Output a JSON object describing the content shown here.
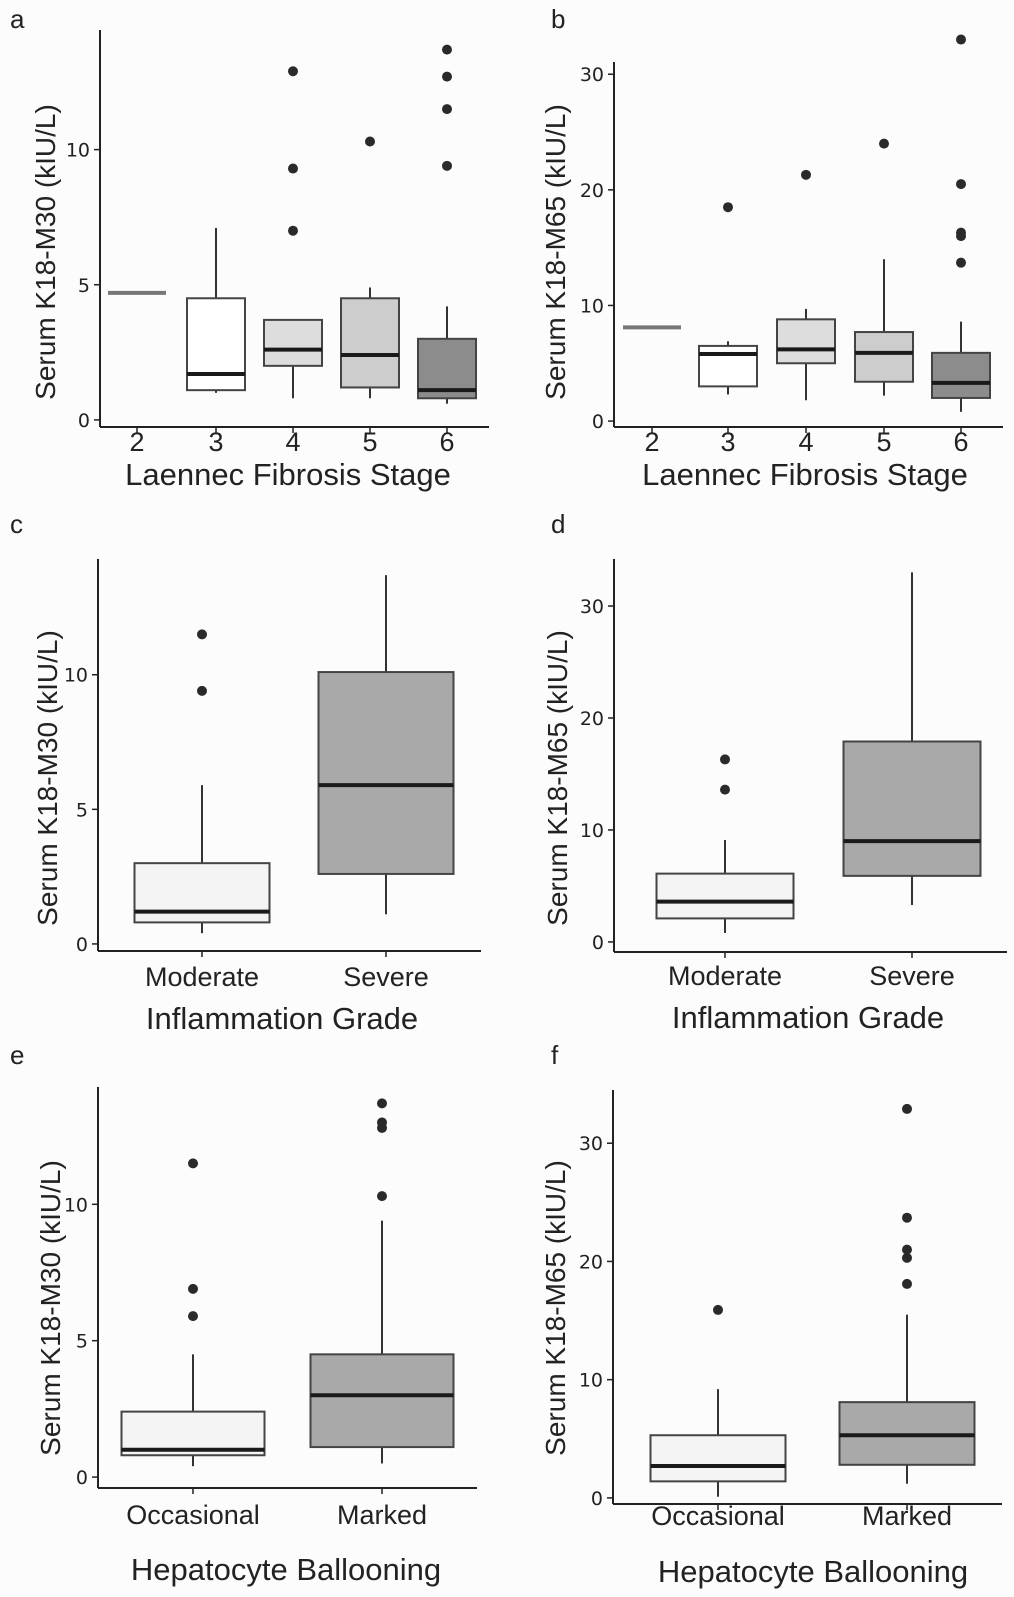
{
  "chart_data": [
    {
      "panel": "a",
      "type": "box",
      "xlabel": "Laennec Fibrosis Stage",
      "ylabel": "Serum K18-M30 (kIU/L)",
      "yticks": [
        0,
        5,
        10
      ],
      "ylim": [
        -0.3,
        14.5
      ],
      "categories": [
        "2",
        "3",
        "4",
        "5",
        "6"
      ],
      "boxes": [
        {
          "min": 4.7,
          "q1": 4.7,
          "median": 4.7,
          "q3": 4.7,
          "max": 4.7,
          "outliers": [],
          "color": "#888888"
        },
        {
          "min": 1.0,
          "q1": 1.1,
          "median": 1.7,
          "q3": 4.5,
          "max": 7.1,
          "outliers": [],
          "color": "#ffffff"
        },
        {
          "min": 0.8,
          "q1": 2.0,
          "median": 2.6,
          "q3": 3.7,
          "max": 3.7,
          "outliers": [
            7.0,
            9.3,
            12.9
          ],
          "color": "#dddddd"
        },
        {
          "min": 0.8,
          "q1": 1.2,
          "median": 2.4,
          "q3": 4.5,
          "max": 4.9,
          "outliers": [
            10.3
          ],
          "color": "#cdcdcd"
        },
        {
          "min": 0.6,
          "q1": 0.8,
          "median": 1.1,
          "q3": 3.0,
          "max": 4.2,
          "outliers": [
            9.4,
            11.5,
            12.7,
            13.7
          ],
          "color": "#8c8c8c"
        }
      ]
    },
    {
      "panel": "b",
      "type": "box",
      "xlabel": "Laennec Fibrosis Stage",
      "ylabel": "Serum K18-M65 (kIU/L)",
      "yticks": [
        0,
        10,
        20,
        30
      ],
      "ylim": [
        -0.6,
        34.0
      ],
      "categories": [
        "2",
        "3",
        "4",
        "5",
        "6"
      ],
      "boxes": [
        {
          "min": 8.1,
          "q1": 8.1,
          "median": 8.1,
          "q3": 8.1,
          "max": 8.1,
          "outliers": [],
          "color": "#888888"
        },
        {
          "min": 2.3,
          "q1": 3.0,
          "median": 5.8,
          "q3": 6.5,
          "max": 6.9,
          "outliers": [
            18.5
          ],
          "color": "#ffffff"
        },
        {
          "min": 1.8,
          "q1": 5.0,
          "median": 6.2,
          "q3": 8.8,
          "max": 9.7,
          "outliers": [
            21.3
          ],
          "color": "#dddddd"
        },
        {
          "min": 2.2,
          "q1": 3.4,
          "median": 5.9,
          "q3": 7.7,
          "max": 14.0,
          "outliers": [
            24.0
          ],
          "color": "#cdcdcd"
        },
        {
          "min": 0.8,
          "q1": 2.0,
          "median": 3.3,
          "q3": 5.9,
          "max": 8.6,
          "outliers": [
            13.7,
            16.0,
            16.3,
            20.5,
            33.0
          ],
          "color": "#8c8c8c"
        }
      ]
    },
    {
      "panel": "c",
      "type": "box",
      "xlabel": "Inflammation Grade",
      "ylabel": "Serum K18-M30 (kIU/L)",
      "yticks": [
        0,
        5,
        10
      ],
      "ylim": [
        -0.3,
        14.3
      ],
      "categories": [
        "Moderate",
        "Severe"
      ],
      "boxes": [
        {
          "min": 0.4,
          "q1": 0.8,
          "median": 1.2,
          "q3": 3.0,
          "max": 5.9,
          "outliers": [
            9.4,
            11.5
          ],
          "color": "#f4f4f4"
        },
        {
          "min": 1.1,
          "q1": 2.6,
          "median": 5.9,
          "q3": 10.1,
          "max": 13.7,
          "outliers": [],
          "color": "#a9a9a9"
        }
      ]
    },
    {
      "panel": "d",
      "type": "box",
      "xlabel": "Inflammation Grade",
      "ylabel": "Serum K18-M65 (kIU/L)",
      "yticks": [
        0,
        10,
        20,
        30
      ],
      "ylim": [
        -0.9,
        34.2
      ],
      "categories": [
        "Moderate",
        "Severe"
      ],
      "boxes": [
        {
          "min": 0.8,
          "q1": 2.1,
          "median": 3.6,
          "q3": 6.1,
          "max": 9.1,
          "outliers": [
            13.6,
            16.3
          ],
          "color": "#f4f4f4"
        },
        {
          "min": 3.3,
          "q1": 5.9,
          "median": 9.0,
          "q3": 17.9,
          "max": 33.0,
          "outliers": [],
          "color": "#a9a9a9"
        }
      ]
    },
    {
      "panel": "e",
      "type": "box",
      "xlabel": "Hepatocyte Ballooning",
      "ylabel": "Serum K18-M30 (kIU/L)",
      "yticks": [
        0,
        5,
        10
      ],
      "ylim": [
        -0.4,
        14.3
      ],
      "categories": [
        "Occasional",
        "Marked"
      ],
      "boxes": [
        {
          "min": 0.4,
          "q1": 0.8,
          "median": 1.0,
          "q3": 2.4,
          "max": 4.5,
          "outliers": [
            5.9,
            6.9,
            11.5
          ],
          "color": "#f4f4f4"
        },
        {
          "min": 0.5,
          "q1": 1.1,
          "median": 3.0,
          "q3": 4.5,
          "max": 9.4,
          "outliers": [
            10.3,
            12.8,
            13.0,
            13.7
          ],
          "color": "#a9a9a9"
        }
      ]
    },
    {
      "panel": "f",
      "type": "box",
      "xlabel": "Hepatocyte Ballooning",
      "ylabel": "Serum K18-M65 (kIU/L)",
      "yticks": [
        0,
        10,
        20,
        30
      ],
      "ylim": [
        -0.6,
        34.5
      ],
      "categories": [
        "Occasional",
        "Marked"
      ],
      "boxes": [
        {
          "min": 0.1,
          "q1": 1.4,
          "median": 2.7,
          "q3": 5.3,
          "max": 9.2,
          "outliers": [
            15.9
          ],
          "color": "#f4f4f4"
        },
        {
          "min": 1.2,
          "q1": 2.8,
          "median": 5.3,
          "q3": 8.1,
          "max": 15.5,
          "outliers": [
            18.1,
            20.3,
            21.0,
            23.7,
            32.9
          ],
          "color": "#a9a9a9"
        }
      ]
    }
  ]
}
